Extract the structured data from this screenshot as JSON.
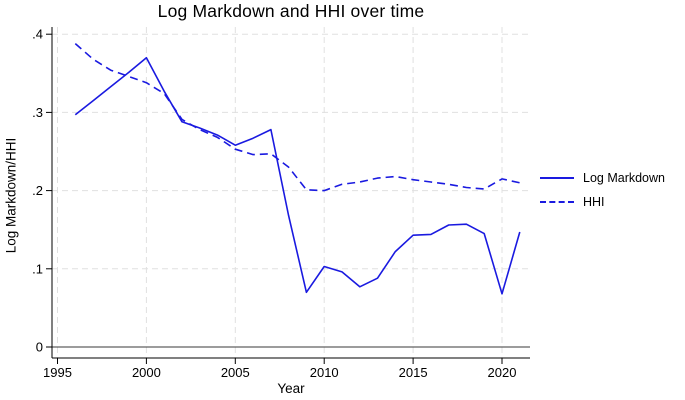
{
  "title": "Log Markdown and HHI over time",
  "axes": {
    "x_label": "Year",
    "y_label": "Log Markdown/HHI"
  },
  "legend": {
    "position": "right-outside",
    "entries": [
      {
        "label": "Log Markdown",
        "style": "solid"
      },
      {
        "label": "HHI",
        "style": "dashed"
      }
    ]
  },
  "colors": {
    "line": "#1a1ae0",
    "grid": "#e0e0e0",
    "axis": "#000000",
    "zero_line": "#3a3a3a",
    "background": "#ffffff"
  },
  "chart_data": {
    "type": "line",
    "title": "Log Markdown and HHI over time",
    "xlabel": "Year",
    "ylabel": "Log Markdown/HHI",
    "x": [
      1996,
      1997,
      1998,
      1999,
      2000,
      2001,
      2002,
      2003,
      2004,
      2005,
      2006,
      2007,
      2008,
      2009,
      2010,
      2011,
      2012,
      2013,
      2014,
      2015,
      2016,
      2017,
      2018,
      2019,
      2020,
      2021
    ],
    "series": [
      {
        "name": "Log Markdown",
        "style": "solid",
        "values": [
          0.297,
          0.315,
          0.333,
          0.351,
          0.37,
          0.327,
          0.288,
          0.28,
          0.271,
          0.258,
          0.267,
          0.278,
          0.168,
          0.07,
          0.103,
          0.096,
          0.077,
          0.088,
          0.122,
          0.143,
          0.144,
          0.156,
          0.157,
          0.145,
          0.068,
          0.147
        ]
      },
      {
        "name": "HHI",
        "style": "dashed",
        "values": [
          0.388,
          0.368,
          0.354,
          0.346,
          0.338,
          0.324,
          0.291,
          0.278,
          0.268,
          0.253,
          0.246,
          0.247,
          0.23,
          0.201,
          0.2,
          0.208,
          0.211,
          0.216,
          0.218,
          0.214,
          0.211,
          0.208,
          0.204,
          0.202,
          0.215,
          0.21
        ]
      }
    ],
    "xlim": [
      1995,
      2021.6
    ],
    "ylim": [
      0,
      0.42
    ],
    "x_ticks": [
      1995,
      2000,
      2005,
      2010,
      2015,
      2020
    ],
    "y_ticks": [
      0,
      0.1,
      0.2,
      0.3,
      0.4
    ],
    "x_tick_labels": [
      "1995",
      "2000",
      "2005",
      "2010",
      "2015",
      "2020"
    ],
    "y_tick_labels": [
      "0",
      ".1",
      ".2",
      ".3",
      ".4"
    ],
    "grid": true,
    "zero_reference_line": true,
    "legend_position": "right-outside"
  }
}
